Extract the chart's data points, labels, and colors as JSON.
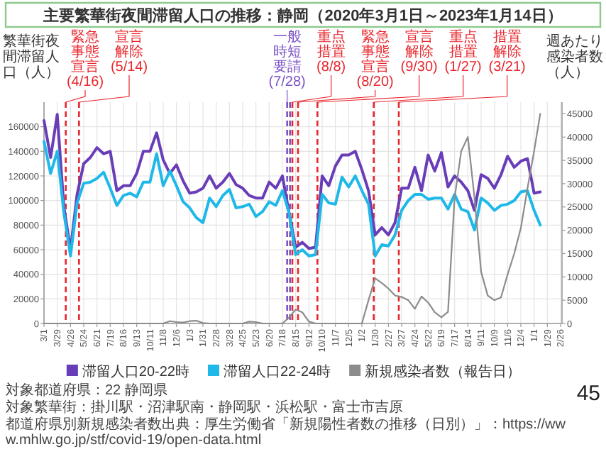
{
  "chart_data": {
    "type": "line",
    "title": "主要繁華街夜間滞留人口の推移：静岡（2020年3月1日～2023年1月14日）",
    "ylabel": "繁華街夜間滞留人口（人）",
    "y2label": "週あたり感染者数（人）",
    "x": [
      "2020-03-01",
      "2020-03-15",
      "2020-03-29",
      "2020-04-12",
      "2020-04-26",
      "2020-05-10",
      "2020-05-24",
      "2020-06-07",
      "2020-06-21",
      "2020-07-05",
      "2020-07-19",
      "2020-08-02",
      "2020-08-16",
      "2020-08-30",
      "2020-09-13",
      "2020-09-27",
      "2020-10-11",
      "2020-10-25",
      "2020-11-08",
      "2020-11-22",
      "2020-12-06",
      "2020-12-20",
      "2021-01-03",
      "2021-01-17",
      "2021-01-31",
      "2021-02-14",
      "2021-02-28",
      "2021-03-14",
      "2021-03-28",
      "2021-04-11",
      "2021-04-25",
      "2021-05-09",
      "2021-05-23",
      "2021-06-06",
      "2021-06-20",
      "2021-07-04",
      "2021-07-18",
      "2021-08-01",
      "2021-08-15",
      "2021-08-29",
      "2021-09-12",
      "2021-09-26",
      "2021-10-10",
      "2021-10-24",
      "2021-11-07",
      "2021-11-21",
      "2021-12-05",
      "2021-12-19",
      "2022-01-02",
      "2022-01-16",
      "2022-01-30",
      "2022-02-13",
      "2022-02-27",
      "2022-03-13",
      "2022-03-27",
      "2022-04-10",
      "2022-04-24",
      "2022-05-08",
      "2022-05-22",
      "2022-06-05",
      "2022-06-19",
      "2022-07-03",
      "2022-07-17",
      "2022-07-31",
      "2022-08-14",
      "2022-08-28",
      "2022-09-11",
      "2022-09-25",
      "2022-10-09",
      "2022-10-23",
      "2022-11-06",
      "2022-11-20",
      "2022-12-04",
      "2022-12-18",
      "2023-01-01",
      "2023-01-14"
    ],
    "series": [
      {
        "name": "滞留人口20-22時",
        "color": "#6a3db8",
        "values": [
          165000,
          135000,
          170000,
          95000,
          60000,
          105000,
          130000,
          135000,
          143000,
          138000,
          140000,
          108000,
          112000,
          112000,
          122000,
          140000,
          140000,
          155000,
          133000,
          122000,
          129000,
          116000,
          106000,
          107000,
          110000,
          120000,
          110000,
          115000,
          122000,
          113000,
          110000,
          104000,
          102000,
          102000,
          115000,
          110000,
          120000,
          90000,
          62000,
          66000,
          61000,
          62000,
          120000,
          112000,
          128000,
          137000,
          137000,
          140000,
          125000,
          108000,
          72000,
          78000,
          72000,
          82000,
          110000,
          110000,
          127000,
          108000,
          137000,
          124000,
          139000,
          111000,
          120000,
          115000,
          108000,
          92000,
          121000,
          118000,
          110000,
          121000,
          136000,
          127000,
          132000,
          134000,
          106000,
          107000
        ]
      },
      {
        "name": "滞留人口22-24時",
        "color": "#1fb8e8",
        "values": [
          148000,
          122000,
          140000,
          90000,
          55000,
          98000,
          114000,
          115000,
          118000,
          123000,
          110000,
          96000,
          104000,
          106000,
          103000,
          115000,
          115000,
          138000,
          112000,
          124000,
          112000,
          99000,
          94000,
          86000,
          82000,
          102000,
          95000,
          104000,
          109000,
          94000,
          95000,
          97000,
          87000,
          91000,
          99000,
          96000,
          108000,
          90000,
          56000,
          60000,
          55000,
          56000,
          105000,
          98000,
          97000,
          119000,
          111000,
          120000,
          108000,
          97000,
          55000,
          64000,
          63000,
          72000,
          92000,
          100000,
          105000,
          105000,
          101000,
          102000,
          102000,
          93000,
          105000,
          93000,
          91000,
          76000,
          102000,
          98000,
          92000,
          96000,
          97000,
          100000,
          107000,
          108000,
          92000,
          80000
        ]
      },
      {
        "name": "新規感染者数（報告日）",
        "color": "#8c8c8c",
        "axis": "y2",
        "values": [
          0,
          0,
          0,
          0,
          0,
          0,
          0,
          0,
          0,
          0,
          0,
          0,
          0,
          0,
          0,
          0,
          0,
          0,
          0,
          500,
          300,
          200,
          500,
          600,
          100,
          0,
          0,
          0,
          0,
          0,
          0,
          400,
          300,
          0,
          0,
          0,
          0,
          1300,
          3000,
          2400,
          400,
          0,
          0,
          0,
          0,
          0,
          0,
          0,
          0,
          5000,
          9700,
          8700,
          7500,
          6000,
          5700,
          5000,
          3150,
          5800,
          4500,
          2400,
          1300,
          2500,
          27000,
          37000,
          40000,
          27000,
          11100,
          6000,
          5000,
          5600,
          10500,
          15000,
          20500,
          29000,
          37000,
          45000
        ]
      }
    ],
    "xlim": [
      "2020-03-01",
      "2023-03-01"
    ],
    "xticks": [
      {
        "value": "2020-03-01",
        "label": "3/1"
      },
      {
        "value": "2020-03-29",
        "label": "3/29"
      },
      {
        "value": "2020-04-26",
        "label": "4/26"
      },
      {
        "value": "2020-05-24",
        "label": "5/24"
      },
      {
        "value": "2020-06-21",
        "label": "6/21"
      },
      {
        "value": "2020-07-19",
        "label": "7/19"
      },
      {
        "value": "2020-08-16",
        "label": "8/16"
      },
      {
        "value": "2020-09-13",
        "label": "9/13"
      },
      {
        "value": "2020-10-11",
        "label": "10/11"
      },
      {
        "value": "2020-11-08",
        "label": "11/8"
      },
      {
        "value": "2020-12-06",
        "label": "12/6"
      },
      {
        "value": "2021-01-03",
        "label": "1/3"
      },
      {
        "value": "2021-01-31",
        "label": "1/31"
      },
      {
        "value": "2021-02-28",
        "label": "2/28"
      },
      {
        "value": "2021-03-28",
        "label": "3/28"
      },
      {
        "value": "2021-04-25",
        "label": "4/25"
      },
      {
        "value": "2021-05-23",
        "label": "5/23"
      },
      {
        "value": "2021-06-20",
        "label": "6/20"
      },
      {
        "value": "2021-07-18",
        "label": "7/18"
      },
      {
        "value": "2021-08-15",
        "label": "8/15"
      },
      {
        "value": "2021-09-12",
        "label": "9/12"
      },
      {
        "value": "2021-10-10",
        "label": "10/10"
      },
      {
        "value": "2021-11-07",
        "label": "11/7"
      },
      {
        "value": "2021-12-05",
        "label": "12/5"
      },
      {
        "value": "2022-01-02",
        "label": "1/2"
      },
      {
        "value": "2022-01-30",
        "label": "1/30"
      },
      {
        "value": "2022-02-27",
        "label": "2/27"
      },
      {
        "value": "2022-03-27",
        "label": "3/27"
      },
      {
        "value": "2022-04-24",
        "label": "4/24"
      },
      {
        "value": "2022-05-22",
        "label": "5/22"
      },
      {
        "value": "2022-06-19",
        "label": "6/19"
      },
      {
        "value": "2022-07-17",
        "label": "7/17"
      },
      {
        "value": "2022-08-14",
        "label": "8/14"
      },
      {
        "value": "2022-09-11",
        "label": "9/11"
      },
      {
        "value": "2022-10-09",
        "label": "10/9"
      },
      {
        "value": "2022-11-06",
        "label": "11/6"
      },
      {
        "value": "2022-12-04",
        "label": "12/4"
      },
      {
        "value": "2023-01-01",
        "label": "1/1"
      },
      {
        "value": "2023-01-29",
        "label": "1/29"
      },
      {
        "value": "2023-02-26",
        "label": "2/26"
      }
    ],
    "ylim": [
      0,
      180000
    ],
    "yticks": [
      0,
      20000,
      40000,
      60000,
      80000,
      100000,
      120000,
      140000,
      160000
    ],
    "y2lim": [
      0,
      47500
    ],
    "y2ticks": [
      0,
      5000,
      10000,
      15000,
      20000,
      25000,
      30000,
      35000,
      40000,
      45000
    ],
    "ref_lines": [
      {
        "axis": "x",
        "value": "2020-04-16",
        "label": "緊急事態宣言(4/16)",
        "color": "#e8262d",
        "line_style": "dashed"
      },
      {
        "axis": "x",
        "value": "2020-05-14",
        "label": "宣言解除(5/14)",
        "color": "#e8262d",
        "line_style": "dashed"
      },
      {
        "axis": "x",
        "value": "2021-07-28",
        "label": "一般時短要請(7/28)",
        "color": "#7b52c7",
        "line_style": "dashed"
      },
      {
        "axis": "x",
        "value": "2021-08-03",
        "color": "#7b52c7",
        "line_style": "dashed"
      },
      {
        "axis": "x",
        "value": "2021-08-08",
        "label": "重点措置(8/8)",
        "color": "#e8262d",
        "line_style": "dashed"
      },
      {
        "axis": "x",
        "value": "2021-08-20",
        "label": "緊急事態宣言(8/20)",
        "color": "#e8262d",
        "line_style": "dashed"
      },
      {
        "axis": "x",
        "value": "2021-09-30",
        "label": "宣言解除(9/30)",
        "color": "#e8262d",
        "line_style": "dashed"
      },
      {
        "axis": "x",
        "value": "2022-01-27",
        "label": "重点措置(1/27)",
        "color": "#e8262d",
        "line_style": "dashed"
      },
      {
        "axis": "x",
        "value": "2022-03-21",
        "label": "措置解除(3/21)",
        "color": "#e8262d",
        "line_style": "dashed"
      }
    ],
    "grid": true,
    "legend": "bottom",
    "marker": "none",
    "line_style": "solid",
    "annotations": [
      "対象都道府県：22 静岡県",
      "対象繁華街：掛川駅・沼津駅南・静岡駅・浜松駅・富士市吉原",
      "都道府県別新規感染者数出典：厚生労働省「新規陽性者数の推移（日別）」：https://www.mhlw.go.jp/stf/covid-19/open-data.html",
      "45"
    ]
  }
}
